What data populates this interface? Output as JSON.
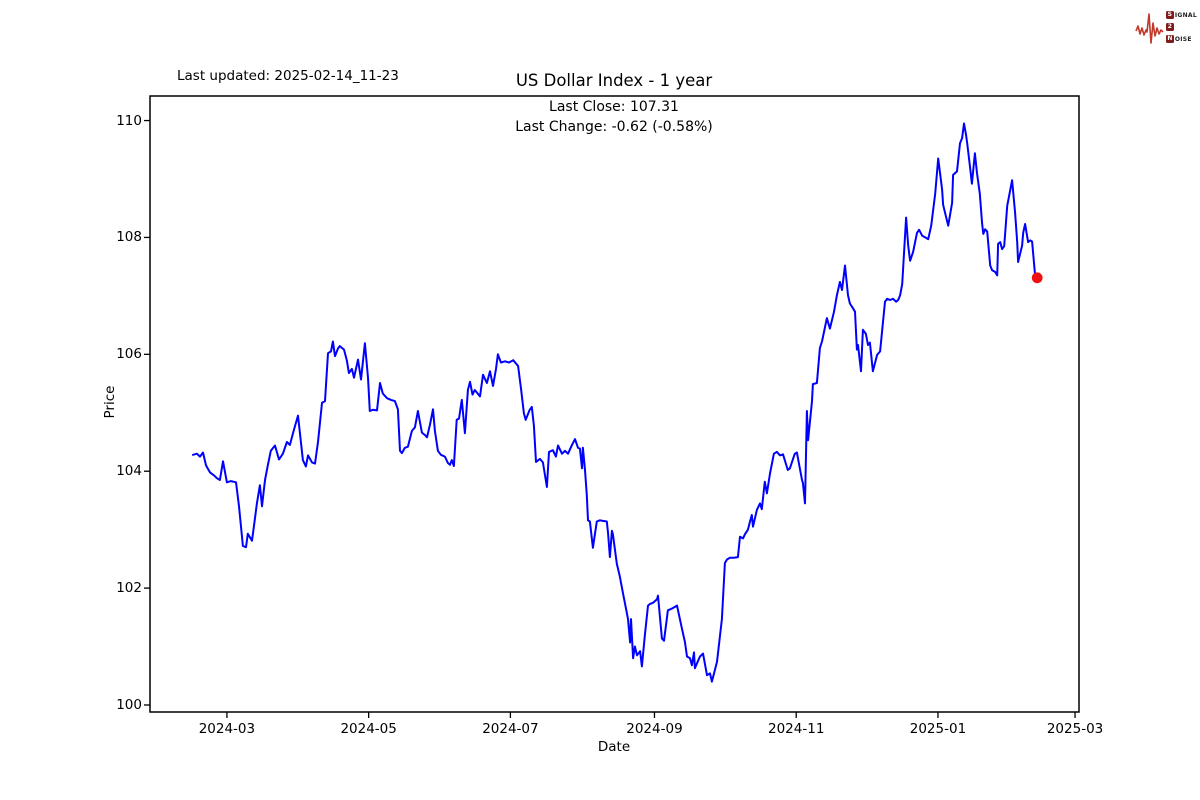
{
  "header": {
    "last_updated": "Last updated: 2025-02-14_11-23"
  },
  "logo": {
    "rows": [
      {
        "boxed": "S",
        "rest": "IGNAL"
      },
      {
        "boxed": "2",
        "rest": ""
      },
      {
        "boxed": "N",
        "rest": "OISE"
      }
    ],
    "wave_color": "#c0392b",
    "box_color": "#7f1d1d",
    "text_color": "#1f1f1f"
  },
  "chart_data": {
    "type": "line",
    "title": "US Dollar Index - 1 year",
    "annotations": {
      "last_close": "Last Close: 107.31",
      "last_change": "Last Change: -0.62 (-0.58%)"
    },
    "xlabel": "Date",
    "ylabel": "Price",
    "x_unit": "days since 2024-03-01",
    "x_ticks": [
      {
        "label": "2024-03",
        "t": 0
      },
      {
        "label": "2024-05",
        "t": 61
      },
      {
        "label": "2024-07",
        "t": 122
      },
      {
        "label": "2024-09",
        "t": 184
      },
      {
        "label": "2024-11",
        "t": 245
      },
      {
        "label": "2025-01",
        "t": 306
      },
      {
        "label": "2025-03",
        "t": 365
      }
    ],
    "y_ticks": [
      100,
      102,
      104,
      106,
      108,
      110
    ],
    "xlim_days": [
      -33.1,
      366.7
    ],
    "ylim": [
      99.88,
      110.42
    ],
    "grid": false,
    "legend": false,
    "line_color": "#0000ff",
    "last_point_color": "#ee1111",
    "last_close": 107.31,
    "last_change": -0.62,
    "points": [
      [
        -14.6,
        104.28
      ],
      [
        -12.9,
        104.3
      ],
      [
        -11.6,
        104.25
      ],
      [
        -10.3,
        104.32
      ],
      [
        -9.0,
        104.1
      ],
      [
        -7.3,
        103.98
      ],
      [
        -5.6,
        103.93
      ],
      [
        -4.3,
        103.88
      ],
      [
        -3.0,
        103.85
      ],
      [
        -1.7,
        104.17
      ],
      [
        0.0,
        103.81
      ],
      [
        1.7,
        103.83
      ],
      [
        3.9,
        103.81
      ],
      [
        5.2,
        103.4
      ],
      [
        6.9,
        102.72
      ],
      [
        8.2,
        102.7
      ],
      [
        9.0,
        102.93
      ],
      [
        10.8,
        102.81
      ],
      [
        12.1,
        103.2
      ],
      [
        12.9,
        103.45
      ],
      [
        14.2,
        103.76
      ],
      [
        15.1,
        103.4
      ],
      [
        16.4,
        103.85
      ],
      [
        17.6,
        104.1
      ],
      [
        18.9,
        104.35
      ],
      [
        20.7,
        104.44
      ],
      [
        22.4,
        104.2
      ],
      [
        24.1,
        104.3
      ],
      [
        25.8,
        104.5
      ],
      [
        27.1,
        104.45
      ],
      [
        28.8,
        104.7
      ],
      [
        30.6,
        104.95
      ],
      [
        32.7,
        104.19
      ],
      [
        34.0,
        104.08
      ],
      [
        34.9,
        104.27
      ],
      [
        36.6,
        104.15
      ],
      [
        37.9,
        104.13
      ],
      [
        39.2,
        104.5
      ],
      [
        40.9,
        105.17
      ],
      [
        42.2,
        105.2
      ],
      [
        43.5,
        106.02
      ],
      [
        44.8,
        106.05
      ],
      [
        45.6,
        106.22
      ],
      [
        46.5,
        105.97
      ],
      [
        47.8,
        106.1
      ],
      [
        48.6,
        106.14
      ],
      [
        50.4,
        106.08
      ],
      [
        51.6,
        105.9
      ],
      [
        52.5,
        105.68
      ],
      [
        53.8,
        105.75
      ],
      [
        54.7,
        105.6
      ],
      [
        56.4,
        105.91
      ],
      [
        57.7,
        105.57
      ],
      [
        59.4,
        106.19
      ],
      [
        60.7,
        105.6
      ],
      [
        61.5,
        105.03
      ],
      [
        62.8,
        105.05
      ],
      [
        64.6,
        105.04
      ],
      [
        65.9,
        105.51
      ],
      [
        67.1,
        105.33
      ],
      [
        68.9,
        105.25
      ],
      [
        70.6,
        105.22
      ],
      [
        72.3,
        105.2
      ],
      [
        73.6,
        105.06
      ],
      [
        74.5,
        104.35
      ],
      [
        75.3,
        104.31
      ],
      [
        76.6,
        104.4
      ],
      [
        77.9,
        104.42
      ],
      [
        79.6,
        104.69
      ],
      [
        80.9,
        104.75
      ],
      [
        82.2,
        105.03
      ],
      [
        83.9,
        104.66
      ],
      [
        85.2,
        104.62
      ],
      [
        86.1,
        104.58
      ],
      [
        87.4,
        104.8
      ],
      [
        88.7,
        105.06
      ],
      [
        89.5,
        104.69
      ],
      [
        90.8,
        104.35
      ],
      [
        92.1,
        104.28
      ],
      [
        93.8,
        104.25
      ],
      [
        95.1,
        104.14
      ],
      [
        96.0,
        104.11
      ],
      [
        96.8,
        104.19
      ],
      [
        97.7,
        104.09
      ],
      [
        98.9,
        104.88
      ],
      [
        99.9,
        104.9
      ],
      [
        101.1,
        105.22
      ],
      [
        102.4,
        104.65
      ],
      [
        103.7,
        105.39
      ],
      [
        104.6,
        105.53
      ],
      [
        105.7,
        105.31
      ],
      [
        106.7,
        105.39
      ],
      [
        108.9,
        105.28
      ],
      [
        110.2,
        105.65
      ],
      [
        111.9,
        105.51
      ],
      [
        113.2,
        105.71
      ],
      [
        114.5,
        105.46
      ],
      [
        115.8,
        105.75
      ],
      [
        116.6,
        106.0
      ],
      [
        117.9,
        105.86
      ],
      [
        119.7,
        105.88
      ],
      [
        121.4,
        105.86
      ],
      [
        123.2,
        105.9
      ],
      [
        125.3,
        105.8
      ],
      [
        126.6,
        105.4
      ],
      [
        127.8,
        104.99
      ],
      [
        128.6,
        104.88
      ],
      [
        130.3,
        105.05
      ],
      [
        131.2,
        105.1
      ],
      [
        132.1,
        104.78
      ],
      [
        133.0,
        104.16
      ],
      [
        134.7,
        104.21
      ],
      [
        136.0,
        104.15
      ],
      [
        137.7,
        103.73
      ],
      [
        138.6,
        104.33
      ],
      [
        140.3,
        104.36
      ],
      [
        141.6,
        104.25
      ],
      [
        142.5,
        104.44
      ],
      [
        144.2,
        104.3
      ],
      [
        145.5,
        104.35
      ],
      [
        146.8,
        104.3
      ],
      [
        148.5,
        104.45
      ],
      [
        149.8,
        104.55
      ],
      [
        151.1,
        104.4
      ],
      [
        151.9,
        104.39
      ],
      [
        152.8,
        104.05
      ],
      [
        153.2,
        104.4
      ],
      [
        154.1,
        104.02
      ],
      [
        154.9,
        103.59
      ],
      [
        155.4,
        103.16
      ],
      [
        156.2,
        103.14
      ],
      [
        157.5,
        102.69
      ],
      [
        159.2,
        103.14
      ],
      [
        160.5,
        103.16
      ],
      [
        161.8,
        103.15
      ],
      [
        163.5,
        103.14
      ],
      [
        164.0,
        102.95
      ],
      [
        164.8,
        102.53
      ],
      [
        165.7,
        102.98
      ],
      [
        166.1,
        102.92
      ],
      [
        167.8,
        102.42
      ],
      [
        169.1,
        102.2
      ],
      [
        170.4,
        101.92
      ],
      [
        172.2,
        101.56
      ],
      [
        172.6,
        101.47
      ],
      [
        173.5,
        101.07
      ],
      [
        173.9,
        101.47
      ],
      [
        174.8,
        100.8
      ],
      [
        175.6,
        101.0
      ],
      [
        176.5,
        100.85
      ],
      [
        177.8,
        100.92
      ],
      [
        178.6,
        100.66
      ],
      [
        179.9,
        101.2
      ],
      [
        181.2,
        101.7
      ],
      [
        182.1,
        101.73
      ],
      [
        183.4,
        101.75
      ],
      [
        185.1,
        101.81
      ],
      [
        185.5,
        101.87
      ],
      [
        187.2,
        101.14
      ],
      [
        188.1,
        101.1
      ],
      [
        189.8,
        101.62
      ],
      [
        191.5,
        101.65
      ],
      [
        193.7,
        101.7
      ],
      [
        195.8,
        101.31
      ],
      [
        197.1,
        101.08
      ],
      [
        198.0,
        100.83
      ],
      [
        199.3,
        100.8
      ],
      [
        200.1,
        100.68
      ],
      [
        201.0,
        100.9
      ],
      [
        201.4,
        100.63
      ],
      [
        202.7,
        100.75
      ],
      [
        203.6,
        100.83
      ],
      [
        204.9,
        100.88
      ],
      [
        206.6,
        100.51
      ],
      [
        207.9,
        100.54
      ],
      [
        208.7,
        100.4
      ],
      [
        210.9,
        100.74
      ],
      [
        213.0,
        101.47
      ],
      [
        214.3,
        102.43
      ],
      [
        215.2,
        102.49
      ],
      [
        216.5,
        102.52
      ],
      [
        218.2,
        102.52
      ],
      [
        219.9,
        102.53
      ],
      [
        220.8,
        102.88
      ],
      [
        222.1,
        102.85
      ],
      [
        222.9,
        102.92
      ],
      [
        224.2,
        103.0
      ],
      [
        225.1,
        103.14
      ],
      [
        225.9,
        103.25
      ],
      [
        226.4,
        103.05
      ],
      [
        228.1,
        103.34
      ],
      [
        229.4,
        103.45
      ],
      [
        230.2,
        103.35
      ],
      [
        231.5,
        103.82
      ],
      [
        232.4,
        103.62
      ],
      [
        233.7,
        103.96
      ],
      [
        235.4,
        104.3
      ],
      [
        236.7,
        104.33
      ],
      [
        238.0,
        104.27
      ],
      [
        239.3,
        104.29
      ],
      [
        241.4,
        104.02
      ],
      [
        242.3,
        104.05
      ],
      [
        244.4,
        104.3
      ],
      [
        245.3,
        104.32
      ],
      [
        247.5,
        103.85
      ],
      [
        247.9,
        103.8
      ],
      [
        248.8,
        103.45
      ],
      [
        249.6,
        105.03
      ],
      [
        250.1,
        104.53
      ],
      [
        251.8,
        105.2
      ],
      [
        252.2,
        105.49
      ],
      [
        253.9,
        105.51
      ],
      [
        255.2,
        106.11
      ],
      [
        256.1,
        106.22
      ],
      [
        258.2,
        106.62
      ],
      [
        259.5,
        106.44
      ],
      [
        261.2,
        106.72
      ],
      [
        262.5,
        107.01
      ],
      [
        263.8,
        107.24
      ],
      [
        264.7,
        107.1
      ],
      [
        266.0,
        107.52
      ],
      [
        267.3,
        107.01
      ],
      [
        268.1,
        106.87
      ],
      [
        269.4,
        106.79
      ],
      [
        270.3,
        106.73
      ],
      [
        271.1,
        106.08
      ],
      [
        271.6,
        106.16
      ],
      [
        272.9,
        105.71
      ],
      [
        273.7,
        106.42
      ],
      [
        275.0,
        106.35
      ],
      [
        275.9,
        106.16
      ],
      [
        276.7,
        106.2
      ],
      [
        278.0,
        105.71
      ],
      [
        279.8,
        105.99
      ],
      [
        281.1,
        106.05
      ],
      [
        283.2,
        106.9
      ],
      [
        284.1,
        106.95
      ],
      [
        285.4,
        106.93
      ],
      [
        286.7,
        106.95
      ],
      [
        288.0,
        106.9
      ],
      [
        288.9,
        106.93
      ],
      [
        289.7,
        107.01
      ],
      [
        290.6,
        107.2
      ],
      [
        292.3,
        108.34
      ],
      [
        293.2,
        107.86
      ],
      [
        294.0,
        107.6
      ],
      [
        295.3,
        107.75
      ],
      [
        297.0,
        108.08
      ],
      [
        297.9,
        108.13
      ],
      [
        299.2,
        108.03
      ],
      [
        300.5,
        108.0
      ],
      [
        301.8,
        107.97
      ],
      [
        303.1,
        108.2
      ],
      [
        304.8,
        108.75
      ],
      [
        306.1,
        109.35
      ],
      [
        307.8,
        108.82
      ],
      [
        308.2,
        108.56
      ],
      [
        310.4,
        108.2
      ],
      [
        312.1,
        108.59
      ],
      [
        312.5,
        109.07
      ],
      [
        314.2,
        109.13
      ],
      [
        315.5,
        109.61
      ],
      [
        316.4,
        109.7
      ],
      [
        317.2,
        109.95
      ],
      [
        318.1,
        109.75
      ],
      [
        318.6,
        109.61
      ],
      [
        319.8,
        109.21
      ],
      [
        320.6,
        108.92
      ],
      [
        321.9,
        109.44
      ],
      [
        322.8,
        109.1
      ],
      [
        324.0,
        108.75
      ],
      [
        325.0,
        108.24
      ],
      [
        325.5,
        108.06
      ],
      [
        326.3,
        108.14
      ],
      [
        327.2,
        108.1
      ],
      [
        328.5,
        107.52
      ],
      [
        329.3,
        107.44
      ],
      [
        330.6,
        107.41
      ],
      [
        331.5,
        107.35
      ],
      [
        331.9,
        107.89
      ],
      [
        332.8,
        107.92
      ],
      [
        333.6,
        107.8
      ],
      [
        334.5,
        107.85
      ],
      [
        335.8,
        108.54
      ],
      [
        337.9,
        108.98
      ],
      [
        339.2,
        108.42
      ],
      [
        340.1,
        107.92
      ],
      [
        340.5,
        107.58
      ],
      [
        342.2,
        107.86
      ],
      [
        342.7,
        108.08
      ],
      [
        343.5,
        108.23
      ],
      [
        344.8,
        107.92
      ],
      [
        345.7,
        107.95
      ],
      [
        346.5,
        107.93
      ],
      [
        347.8,
        107.35
      ],
      [
        348.7,
        107.31
      ]
    ]
  }
}
